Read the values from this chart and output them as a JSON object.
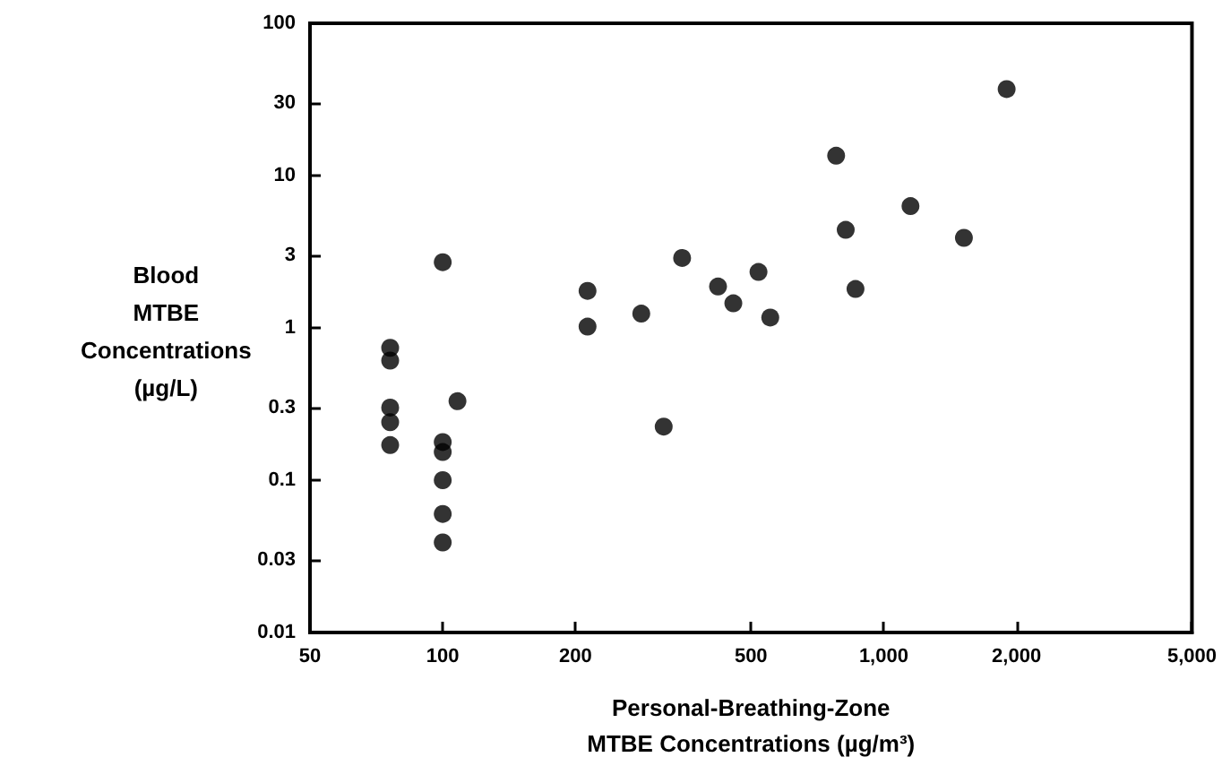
{
  "chart_data": {
    "type": "scatter",
    "xlabel": "Personal-Breathing-Zone\nMTBE Concentrations (µg/m³)",
    "ylabel": "Blood\nMTBE\nConcentrations\n(µg/L)",
    "x": [
      76,
      76,
      76,
      76,
      76,
      100,
      100,
      100,
      100,
      100,
      100,
      108,
      213,
      213,
      282,
      317,
      349,
      421,
      456,
      520,
      553,
      780,
      820,
      863,
      1150,
      1520,
      1900
    ],
    "values": [
      0.74,
      0.61,
      0.3,
      0.24,
      0.17,
      2.7,
      0.178,
      0.153,
      0.1,
      0.06,
      0.039,
      0.33,
      1.75,
      1.02,
      1.24,
      0.225,
      2.88,
      1.87,
      1.45,
      2.33,
      1.17,
      13.5,
      4.4,
      1.8,
      6.3,
      3.9,
      37
    ],
    "color": "#000000",
    "marker": "circle",
    "log": "xy",
    "grid": false,
    "xlim": [
      50,
      5000
    ],
    "xticks": [
      50,
      100,
      200,
      500,
      {
        "value": 1000,
        "label": "1,000"
      },
      {
        "value": 2000,
        "label": "2,000"
      },
      {
        "value": 5000,
        "label": "5,000"
      }
    ],
    "ylim": [
      0.01,
      100
    ],
    "yticks": [
      0.01,
      0.03,
      0.1,
      0.3,
      1,
      3,
      10,
      30,
      100
    ]
  }
}
